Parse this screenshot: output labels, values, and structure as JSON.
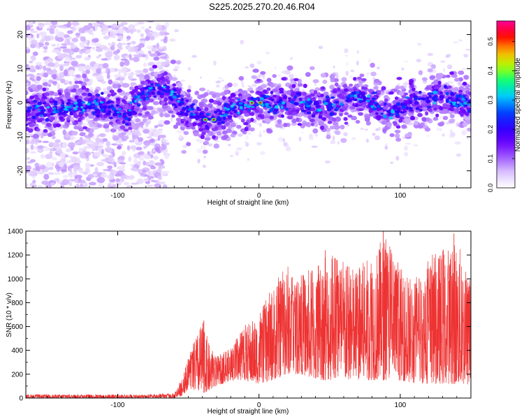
{
  "figure_title": "S225.2025.270.20.46.R04",
  "colors": {
    "snr_line": "#ee3333",
    "spectrogram_background": "#ffffff",
    "colormap": [
      "#ffffff",
      "#ddc6ff",
      "#a05cff",
      "#6a00ff",
      "#2a00ff",
      "#0044ff",
      "#00c8ff",
      "#00ff80",
      "#b0ff00",
      "#ffb000",
      "#ff0000",
      "#ff0099"
    ]
  },
  "chart_data": [
    {
      "id": "spectrogram",
      "type": "heatmap",
      "xlabel": "Height of straight line (km)",
      "ylabel": "Frequency (Hz)",
      "xlim": [
        -165,
        150
      ],
      "ylim": [
        -25,
        24
      ],
      "xticks": [
        -100,
        0,
        100
      ],
      "yticks": [
        -20,
        -10,
        0,
        10,
        20
      ],
      "colorbar": {
        "label": "Normalized spectral amplitude",
        "range": [
          0.0,
          0.57
        ],
        "ticks": [
          0.0,
          0.1,
          0.2,
          0.3,
          0.4,
          0.5
        ]
      },
      "ridge_centerline": [
        [
          -165,
          -3
        ],
        [
          -150,
          -2
        ],
        [
          -130,
          -1
        ],
        [
          -110,
          -1
        ],
        [
          -100,
          -2
        ],
        [
          -95,
          -4
        ],
        [
          -85,
          1
        ],
        [
          -78,
          3
        ],
        [
          -70,
          5
        ],
        [
          -65,
          4
        ],
        [
          -60,
          1
        ],
        [
          -55,
          -1
        ],
        [
          -48,
          -3
        ],
        [
          -42,
          -5
        ],
        [
          -35,
          -5
        ],
        [
          -28,
          -4
        ],
        [
          -20,
          -2
        ],
        [
          -10,
          -1
        ],
        [
          0,
          0
        ],
        [
          10,
          -1
        ],
        [
          20,
          0
        ],
        [
          30,
          0
        ],
        [
          40,
          -1
        ],
        [
          50,
          -1
        ],
        [
          60,
          0
        ],
        [
          70,
          2
        ],
        [
          80,
          0
        ],
        [
          90,
          -3
        ],
        [
          100,
          -2
        ],
        [
          110,
          0
        ],
        [
          120,
          1
        ],
        [
          130,
          2
        ],
        [
          140,
          0
        ],
        [
          150,
          0
        ]
      ],
      "peak_amplitude_points": [
        [
          -38,
          -5
        ],
        [
          -32,
          -5
        ],
        [
          -5,
          0
        ],
        [
          1,
          0
        ]
      ],
      "description_low_amp_scatter_region": [
        -165,
        -65
      ]
    },
    {
      "id": "snr",
      "type": "line",
      "xlabel": "Height of straight line (km)",
      "ylabel": "SNR (10 * v/v)",
      "xlim": [
        -165,
        150
      ],
      "ylim": [
        0,
        1400
      ],
      "xticks": [
        -100,
        0,
        100
      ],
      "yticks": [
        0,
        200,
        400,
        600,
        800,
        1000,
        1200,
        1400
      ],
      "envelope": {
        "x": [
          -165,
          -120,
          -80,
          -60,
          -54,
          -50,
          -45,
          -40,
          -35,
          -30,
          -20,
          -10,
          0,
          10,
          20,
          25,
          30,
          40,
          50,
          60,
          70,
          80,
          90,
          100,
          110,
          120,
          130,
          140,
          150
        ],
        "min": [
          0,
          0,
          0,
          0,
          20,
          80,
          60,
          40,
          60,
          100,
          150,
          150,
          120,
          150,
          200,
          200,
          200,
          150,
          150,
          150,
          150,
          150,
          150,
          150,
          120,
          120,
          120,
          120,
          100
        ],
        "max": [
          30,
          30,
          30,
          40,
          180,
          350,
          500,
          650,
          450,
          350,
          420,
          620,
          700,
          950,
          1150,
          1000,
          1050,
          1100,
          1250,
          1150,
          1100,
          1200,
          1400,
          1100,
          1000,
          1200,
          1250,
          1350,
          1000
        ]
      },
      "notable_peaks": [
        [
          88,
          1400
        ],
        [
          138,
          1380
        ],
        [
          47,
          1240
        ],
        [
          -39,
          650
        ]
      ]
    }
  ]
}
